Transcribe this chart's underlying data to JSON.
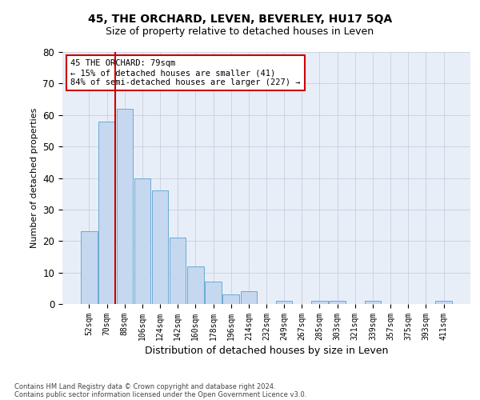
{
  "title": "45, THE ORCHARD, LEVEN, BEVERLEY, HU17 5QA",
  "subtitle": "Size of property relative to detached houses in Leven",
  "xlabel": "Distribution of detached houses by size in Leven",
  "ylabel": "Number of detached properties",
  "footer1": "Contains HM Land Registry data © Crown copyright and database right 2024.",
  "footer2": "Contains public sector information licensed under the Open Government Licence v3.0.",
  "annotation_title": "45 THE ORCHARD: 79sqm",
  "annotation_line1": "← 15% of detached houses are smaller (41)",
  "annotation_line2": "84% of semi-detached houses are larger (227) →",
  "bar_categories": [
    "52sqm",
    "70sqm",
    "88sqm",
    "106sqm",
    "124sqm",
    "142sqm",
    "160sqm",
    "178sqm",
    "196sqm",
    "214sqm",
    "232sqm",
    "249sqm",
    "267sqm",
    "285sqm",
    "303sqm",
    "321sqm",
    "339sqm",
    "357sqm",
    "375sqm",
    "393sqm",
    "411sqm"
  ],
  "bar_values": [
    23,
    58,
    62,
    40,
    36,
    21,
    12,
    7,
    3,
    4,
    0,
    1,
    0,
    1,
    1,
    0,
    1,
    0,
    0,
    0,
    1
  ],
  "bar_color": "#c5d8f0",
  "bar_edge_color": "#6aaad4",
  "vline_color": "#cc0000",
  "annotation_box_color": "#cc0000",
  "ylim": [
    0,
    80
  ],
  "yticks": [
    0,
    10,
    20,
    30,
    40,
    50,
    60,
    70,
    80
  ],
  "grid_color": "#c8d0dc",
  "bg_color": "#e8eef8",
  "title_fontsize": 10,
  "subtitle_fontsize": 9
}
